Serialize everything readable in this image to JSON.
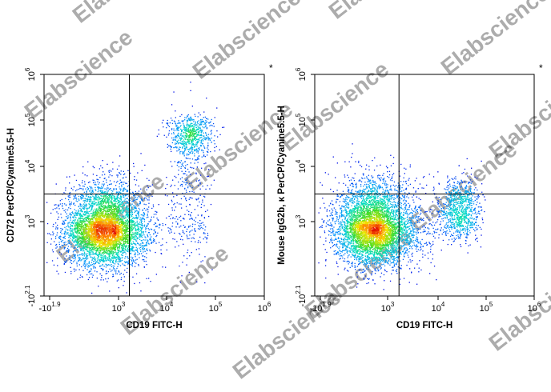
{
  "watermark": "Elabscience",
  "chart_data": [
    {
      "type": "scatter",
      "subtype": "flow-cytometry-density-dot-plot",
      "xlabel": "CD19 FITC-H",
      "ylabel": "CD72 PerCP/Cyanine5.5-H",
      "corner_mark": "*",
      "x_scale": "biexponential",
      "y_scale": "biexponential",
      "xlim": [
        -79,
        1000000
      ],
      "ylim": [
        -126,
        1000000
      ],
      "x_ticks": [
        {
          "value": -79,
          "base": "-10",
          "exp": "1.9"
        },
        {
          "value": 1000,
          "base": "10",
          "exp": "3"
        },
        {
          "value": 10000,
          "base": "10",
          "exp": "4"
        },
        {
          "value": 100000,
          "base": "10",
          "exp": "5"
        },
        {
          "value": 1000000,
          "base": "10",
          "exp": "6"
        }
      ],
      "y_ticks": [
        {
          "value": -126,
          "base": "-10",
          "exp": "2.1"
        },
        {
          "value": 1000,
          "base": "10",
          "exp": "3"
        },
        {
          "value": 10000,
          "base": "10",
          "exp": "4"
        },
        {
          "value": 100000,
          "base": "10",
          "exp": "5"
        },
        {
          "value": 1000000,
          "base": "10",
          "exp": "6"
        }
      ],
      "gate": {
        "x": 1700,
        "y": 3200
      },
      "color_scale": "density: blue-cyan-green-yellow-red",
      "populations": [
        {
          "x_center": 450,
          "y_center": 650,
          "x_spread": 1.1,
          "y_spread": 1.0,
          "count": 5200
        },
        {
          "x_center": 30000,
          "y_center": 50000,
          "x_spread": 0.55,
          "y_spread": 0.5,
          "count": 620
        },
        {
          "x_center": 30000,
          "y_center": 3000,
          "x_spread": 0.55,
          "y_spread": 2.0,
          "count": 380
        }
      ],
      "grid": false
    },
    {
      "type": "scatter",
      "subtype": "flow-cytometry-density-dot-plot",
      "xlabel": "CD19 FITC-H",
      "ylabel": "Mouse IgG2b, κ PerCP/Cyanine5.5-H",
      "corner_mark": "*",
      "x_scale": "biexponential",
      "y_scale": "biexponential",
      "xlim": [
        -79,
        1000000
      ],
      "ylim": [
        -126,
        1000000
      ],
      "x_ticks": [
        {
          "value": -79,
          "base": "-10",
          "exp": "1.9"
        },
        {
          "value": 1000,
          "base": "10",
          "exp": "3"
        },
        {
          "value": 10000,
          "base": "10",
          "exp": "4"
        },
        {
          "value": 100000,
          "base": "10",
          "exp": "5"
        },
        {
          "value": 1000000,
          "base": "10",
          "exp": "6"
        }
      ],
      "y_ticks": [
        {
          "value": -126,
          "base": "-10",
          "exp": "2.1"
        },
        {
          "value": 1000,
          "base": "10",
          "exp": "3"
        },
        {
          "value": 10000,
          "base": "10",
          "exp": "4"
        },
        {
          "value": 100000,
          "base": "10",
          "exp": "5"
        },
        {
          "value": 1000000,
          "base": "10",
          "exp": "6"
        }
      ],
      "gate": {
        "x": 1700,
        "y": 3200
      },
      "color_scale": "density: blue-cyan-green-yellow-red",
      "populations": [
        {
          "x_center": 450,
          "y_center": 700,
          "x_spread": 1.1,
          "y_spread": 1.0,
          "count": 5200
        },
        {
          "x_center": 28000,
          "y_center": 1600,
          "x_spread": 0.5,
          "y_spread": 0.7,
          "count": 900
        }
      ],
      "grid": false
    }
  ]
}
